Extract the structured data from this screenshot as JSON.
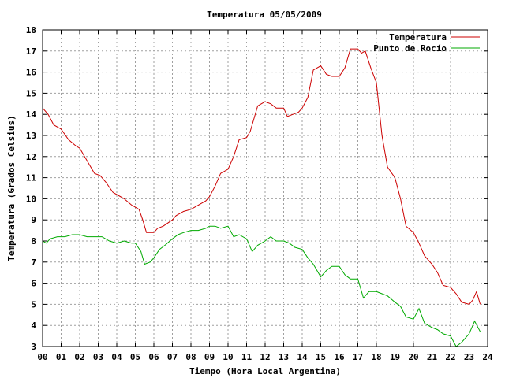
{
  "chart_data": {
    "type": "line",
    "title": "Temperatura 05/05/2009",
    "xlabel": "Tiempo (Hora Local Argentina)",
    "ylabel": "Temperatura (Grados Celsius)",
    "xlim": [
      0,
      24
    ],
    "ylim": [
      3,
      18
    ],
    "x_ticks": [
      "00",
      "01",
      "02",
      "03",
      "04",
      "05",
      "06",
      "07",
      "08",
      "09",
      "10",
      "11",
      "12",
      "13",
      "14",
      "15",
      "16",
      "17",
      "18",
      "19",
      "20",
      "21",
      "22",
      "23",
      "24"
    ],
    "y_ticks": [
      "3",
      "4",
      "5",
      "6",
      "7",
      "8",
      "9",
      "10",
      "11",
      "12",
      "13",
      "14",
      "15",
      "16",
      "17",
      "18"
    ],
    "grid": true,
    "legend_position": "top-right",
    "series": [
      {
        "name": "Temperatura",
        "color": "#cc0000",
        "x": [
          0,
          0.3,
          0.6,
          1.0,
          1.4,
          1.8,
          2.0,
          2.4,
          2.8,
          3.1,
          3.4,
          3.8,
          4.0,
          4.4,
          4.8,
          5.0,
          5.2,
          5.4,
          5.6,
          6.0,
          6.2,
          6.5,
          7.0,
          7.2,
          7.6,
          8.0,
          8.4,
          8.8,
          9.0,
          9.3,
          9.6,
          10.0,
          10.3,
          10.6,
          11.0,
          11.2,
          11.6,
          12.0,
          12.3,
          12.6,
          13.0,
          13.2,
          13.5,
          13.8,
          14.0,
          14.3,
          14.6,
          15.0,
          15.3,
          15.6,
          16.0,
          16.3,
          16.6,
          17.0,
          17.2,
          17.4,
          17.7,
          18.0,
          18.3,
          18.6,
          19.0,
          19.3,
          19.6,
          20.0,
          20.3,
          20.6,
          21.0,
          21.3,
          21.6,
          22.0,
          22.3,
          22.6,
          23.0,
          23.2,
          23.4,
          23.6
        ],
        "values": [
          14.3,
          14.0,
          13.5,
          13.3,
          12.8,
          12.5,
          12.4,
          11.8,
          11.2,
          11.1,
          10.8,
          10.3,
          10.2,
          10.0,
          9.7,
          9.6,
          9.5,
          9.0,
          8.4,
          8.4,
          8.6,
          8.7,
          9.0,
          9.2,
          9.4,
          9.5,
          9.7,
          9.9,
          10.1,
          10.6,
          11.2,
          11.4,
          12.0,
          12.8,
          12.9,
          13.2,
          14.4,
          14.6,
          14.5,
          14.3,
          14.3,
          13.9,
          14.0,
          14.1,
          14.3,
          14.8,
          16.1,
          16.3,
          15.9,
          15.8,
          15.8,
          16.2,
          17.1,
          17.1,
          16.9,
          17.0,
          16.2,
          15.5,
          13.0,
          11.5,
          11.0,
          10.0,
          8.7,
          8.4,
          7.9,
          7.3,
          6.9,
          6.5,
          5.9,
          5.8,
          5.5,
          5.1,
          5.0,
          5.2,
          5.6,
          5.0
        ]
      },
      {
        "name": "Punto de Rocío",
        "color": "#00aa00",
        "x": [
          0,
          0.2,
          0.4,
          0.8,
          1.2,
          1.6,
          2.0,
          2.4,
          2.8,
          3.2,
          3.6,
          4.0,
          4.4,
          4.8,
          5.0,
          5.3,
          5.5,
          5.8,
          6.0,
          6.3,
          6.6,
          7.0,
          7.3,
          7.6,
          8.0,
          8.4,
          8.8,
          9.0,
          9.3,
          9.6,
          10.0,
          10.3,
          10.6,
          11.0,
          11.3,
          11.6,
          12.0,
          12.3,
          12.6,
          13.0,
          13.3,
          13.6,
          14.0,
          14.3,
          14.6,
          15.0,
          15.3,
          15.6,
          16.0,
          16.3,
          16.6,
          17.0,
          17.3,
          17.6,
          18.0,
          18.3,
          18.6,
          19.0,
          19.3,
          19.6,
          20.0,
          20.3,
          20.6,
          21.0,
          21.3,
          21.6,
          22.0,
          22.3,
          22.6,
          23.0,
          23.3,
          23.6
        ],
        "values": [
          8.0,
          7.9,
          8.1,
          8.2,
          8.2,
          8.3,
          8.3,
          8.2,
          8.2,
          8.2,
          8.0,
          7.9,
          8.0,
          7.9,
          7.9,
          7.5,
          6.9,
          7.0,
          7.2,
          7.6,
          7.8,
          8.1,
          8.3,
          8.4,
          8.5,
          8.5,
          8.6,
          8.7,
          8.7,
          8.6,
          8.7,
          8.2,
          8.3,
          8.1,
          7.5,
          7.8,
          8.0,
          8.2,
          8.0,
          8.0,
          7.9,
          7.7,
          7.6,
          7.2,
          6.9,
          6.3,
          6.6,
          6.8,
          6.8,
          6.4,
          6.2,
          6.2,
          5.3,
          5.6,
          5.6,
          5.5,
          5.4,
          5.1,
          4.9,
          4.4,
          4.3,
          4.8,
          4.1,
          3.9,
          3.8,
          3.6,
          3.5,
          3.0,
          3.2,
          3.6,
          4.2,
          3.7
        ]
      }
    ]
  }
}
